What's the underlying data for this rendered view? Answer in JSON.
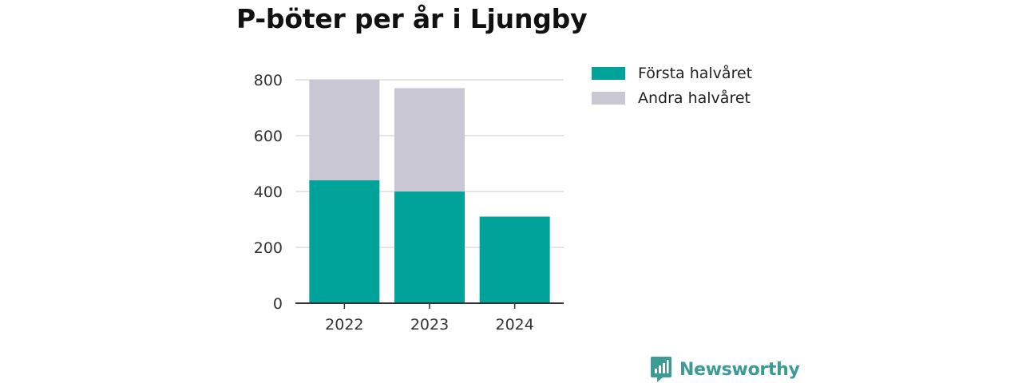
{
  "chart_data": {
    "type": "bar",
    "stacked": true,
    "title": "P-böter per år i Ljungby",
    "categories": [
      "2022",
      "2023",
      "2024"
    ],
    "series": [
      {
        "name": "Första halvåret",
        "values": [
          440,
          400,
          310
        ],
        "color": "#00a39a"
      },
      {
        "name": "Andra halvåret",
        "values": [
          360,
          370,
          0
        ],
        "color": "#c8c7d3"
      }
    ],
    "ylim": [
      0,
      800
    ],
    "yticks": [
      0,
      200,
      400,
      600,
      800
    ],
    "grid": true,
    "legend_position": "right"
  },
  "brand": {
    "name": "Newsworthy",
    "color": "#3c9b95",
    "icon": "newsworthy-logo-icon"
  }
}
